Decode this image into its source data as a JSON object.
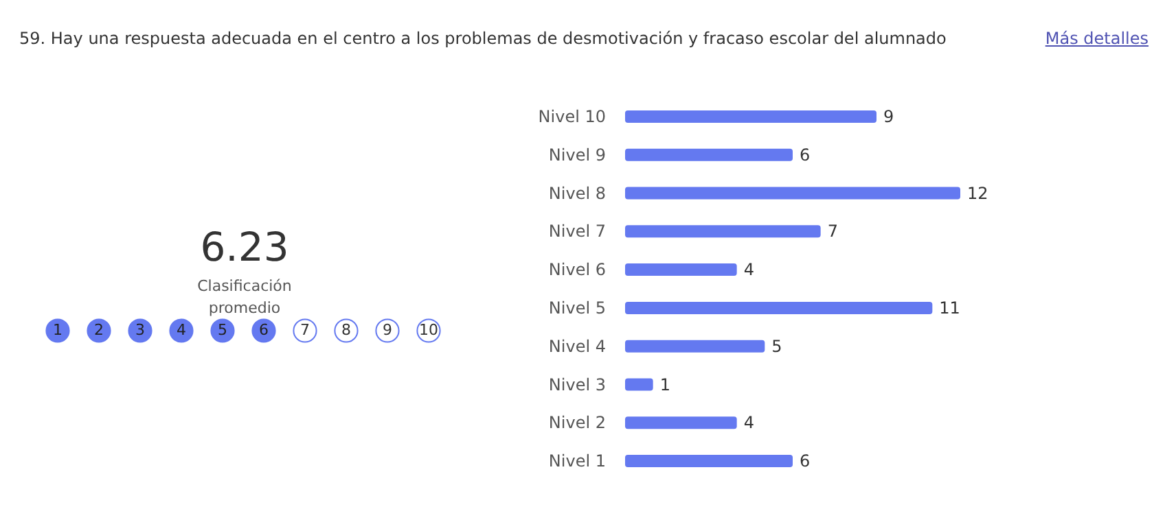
{
  "chart_data": {
    "type": "bar",
    "orientation": "horizontal",
    "title": "59. Hay una respuesta adecuada en el centro a los problemas de desmotivación y fracaso escolar del alumnado",
    "categories": [
      "Nivel 10",
      "Nivel 9",
      "Nivel 8",
      "Nivel 7",
      "Nivel 6",
      "Nivel 5",
      "Nivel 4",
      "Nivel 3",
      "Nivel 2",
      "Nivel 1"
    ],
    "values": [
      9,
      6,
      12,
      7,
      4,
      11,
      5,
      1,
      4,
      6
    ],
    "color": "#6479f0",
    "data_labels": true,
    "annotations": [
      "Más detalles",
      "6.23",
      "Clasificación promedio",
      "1",
      "2",
      "3",
      "4",
      "5",
      "6",
      "7",
      "8",
      "9",
      "10"
    ]
  }
}
